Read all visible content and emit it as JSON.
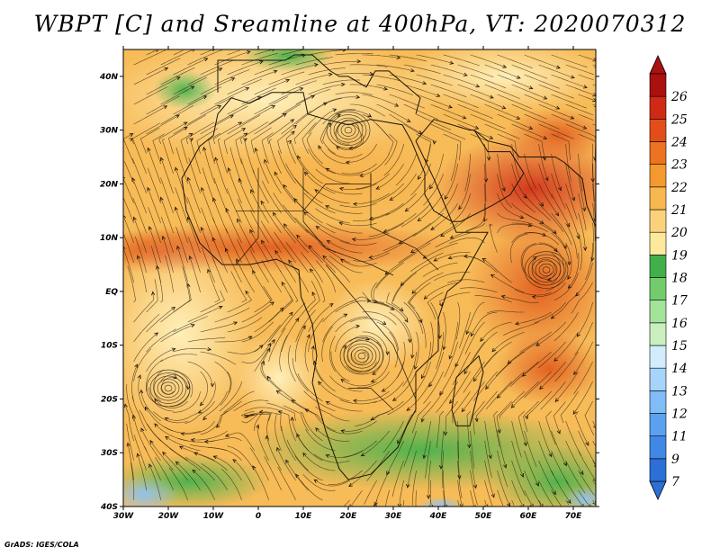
{
  "title": "WBPT [C] and Sreamline at 400hPa, VT: 2020070312",
  "credit": "GrADS: IGES/COLA",
  "map": {
    "lon_range": [
      -30,
      75
    ],
    "lat_range": [
      -40,
      45
    ],
    "x_ticks": [
      {
        "value": -30,
        "label": "30W"
      },
      {
        "value": -20,
        "label": "20W"
      },
      {
        "value": -10,
        "label": "10W"
      },
      {
        "value": 0,
        "label": "0"
      },
      {
        "value": 10,
        "label": "10E"
      },
      {
        "value": 20,
        "label": "20E"
      },
      {
        "value": 30,
        "label": "30E"
      },
      {
        "value": 40,
        "label": "40E"
      },
      {
        "value": 50,
        "label": "50E"
      },
      {
        "value": 60,
        "label": "60E"
      },
      {
        "value": 70,
        "label": "70E"
      }
    ],
    "y_ticks": [
      {
        "value": 40,
        "label": "40N"
      },
      {
        "value": 30,
        "label": "30N"
      },
      {
        "value": 20,
        "label": "20N"
      },
      {
        "value": 10,
        "label": "10N"
      },
      {
        "value": 0,
        "label": "EQ"
      },
      {
        "value": -10,
        "label": "10S"
      },
      {
        "value": -20,
        "label": "20S"
      },
      {
        "value": -30,
        "label": "30S"
      },
      {
        "value": -40,
        "label": "40S"
      }
    ],
    "vortices": [
      {
        "lon": -20,
        "lat": -18
      },
      {
        "lon": 23,
        "lat": -12
      },
      {
        "lon": 64,
        "lat": 4
      },
      {
        "lon": 20,
        "lat": 30
      }
    ]
  },
  "colorbar": {
    "levels": [
      "7",
      "9",
      "11",
      "12",
      "13",
      "14",
      "15",
      "16",
      "17",
      "18",
      "19",
      "20",
      "21",
      "22",
      "23",
      "24",
      "25",
      "26"
    ],
    "colors": [
      "#2c6fd6",
      "#4188e6",
      "#5ba1f0",
      "#80bcf6",
      "#a6d4fa",
      "#d3ecfd",
      "#c9efbe",
      "#a3e39a",
      "#73cc6c",
      "#42b04a",
      "#fde89c",
      "#fbd27a",
      "#f8b84f",
      "#f39a2d",
      "#ec7320",
      "#e24d1a",
      "#cf2a16",
      "#aa1010"
    ]
  }
}
